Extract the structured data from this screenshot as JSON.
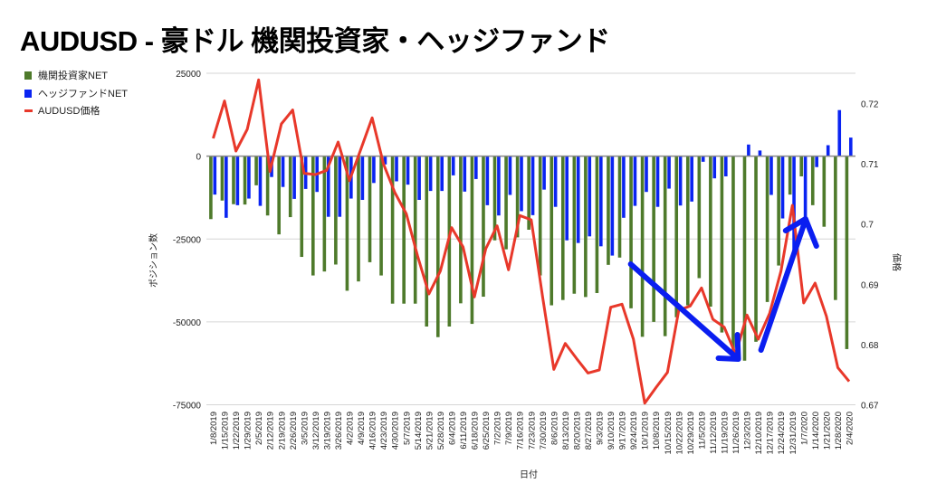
{
  "chart_data": {
    "type": "bar+line",
    "title": "AUDUSD - 豪ドル 機関投資家・ヘッジファンド",
    "xlabel": "日付",
    "ylabel": "ポジション数",
    "y2label": "価格",
    "ylim": [
      -75000,
      25000
    ],
    "y2lim": [
      0.67,
      0.72
    ],
    "yticks": [
      "25000",
      "0",
      "-25000",
      "-50000",
      "-75000"
    ],
    "y2ticks": [
      "0.72",
      "0.71",
      "0.7",
      "0.69",
      "0.68",
      "0.67"
    ],
    "grid": true,
    "legend_position": "top-left",
    "colors": {
      "institutional": "#4e7a2b",
      "hedge": "#0a24f2",
      "price": "#e8382a",
      "arrow": "#0a1ef0"
    },
    "categories": [
      "1/8/2019",
      "1/15/2019",
      "1/22/2019",
      "1/29/2019",
      "2/5/2019",
      "2/12/2019",
      "2/19/2019",
      "2/26/2019",
      "3/5/2019",
      "3/12/2019",
      "3/19/2019",
      "3/26/2019",
      "4/2/2019",
      "4/9/2019",
      "4/16/2019",
      "4/23/2019",
      "4/30/2019",
      "5/7/2019",
      "5/14/2019",
      "5/21/2019",
      "5/28/2019",
      "6/4/2019",
      "6/11/2019",
      "6/18/2019",
      "6/25/2019",
      "7/2/2019",
      "7/9/2019",
      "7/16/2019",
      "7/23/2019",
      "7/30/2019",
      "8/6/2019",
      "8/13/2019",
      "8/20/2019",
      "8/27/2019",
      "9/3/2019",
      "9/10/2019",
      "9/17/2019",
      "9/24/2019",
      "10/1/2019",
      "10/8/2019",
      "10/15/2019",
      "10/22/2019",
      "10/29/2019",
      "11/5/2019",
      "11/12/2019",
      "11/19/2019",
      "11/26/2019",
      "12/3/2019",
      "12/10/2019",
      "12/17/2019",
      "12/24/2019",
      "12/31/2019",
      "1/7/2020",
      "1/14/2020",
      "1/21/2020",
      "1/28/2020",
      "2/4/2020"
    ],
    "series": [
      {
        "name": "機関投資家NET",
        "type": "bar",
        "axis": "left",
        "values": [
          -19000,
          -13400,
          -14500,
          -14600,
          -8800,
          -17900,
          -23600,
          -18400,
          -30400,
          -36000,
          -34800,
          -32700,
          -40600,
          -37800,
          -32000,
          -36000,
          -44500,
          -44500,
          -44500,
          -51400,
          -54600,
          -51400,
          -44400,
          -50600,
          -42400,
          -25400,
          -28100,
          -24500,
          -22200,
          -36000,
          -45000,
          -43400,
          -41500,
          -42500,
          -41300,
          -32800,
          -30600,
          -45900,
          -54500,
          -50000,
          -54300,
          -48600,
          -45000,
          -36800,
          -45400,
          -53200,
          -61000,
          -61700,
          -56000,
          -44000,
          -33000,
          -11600,
          -6100,
          -14800,
          -21300,
          -43400,
          -58200
        ]
      },
      {
        "name": "ヘッジファンドNET",
        "type": "bar",
        "axis": "left",
        "values": [
          -11600,
          -18600,
          -14800,
          -12800,
          -15000,
          -6300,
          -9300,
          -12900,
          -9900,
          -10800,
          -18300,
          -18300,
          -12800,
          -13200,
          -8100,
          -2500,
          -7600,
          -8600,
          -13200,
          -10500,
          -10500,
          -5800,
          -10700,
          -6900,
          -14800,
          -17900,
          -11700,
          -16600,
          -17800,
          -10100,
          -15300,
          -25400,
          -26200,
          -24200,
          -27200,
          -30000,
          -18600,
          -15000,
          -10800,
          -15300,
          -9800,
          -14900,
          -13700,
          -1700,
          -6700,
          -6100,
          0,
          3500,
          1700,
          -11700,
          -18800,
          -30000,
          -18600,
          -3300,
          3300,
          13900,
          5600
        ]
      },
      {
        "name": "AUDUSD価格",
        "type": "line",
        "axis": "right",
        "values": [
          0.7142,
          0.7204,
          0.7121,
          0.7157,
          0.7239,
          0.7087,
          0.7166,
          0.7189,
          0.7084,
          0.7082,
          0.7089,
          0.7136,
          0.7072,
          0.7124,
          0.7176,
          0.7099,
          0.7052,
          0.7017,
          0.6947,
          0.6884,
          0.6922,
          0.6994,
          0.6962,
          0.6879,
          0.6959,
          0.6997,
          0.6924,
          0.7014,
          0.7007,
          0.688,
          0.6759,
          0.6802,
          0.6777,
          0.6753,
          0.6758,
          0.6862,
          0.6867,
          0.6809,
          0.6703,
          0.6729,
          0.6754,
          0.6857,
          0.6864,
          0.6894,
          0.6842,
          0.6829,
          0.6784,
          0.6849,
          0.6809,
          0.6852,
          0.6922,
          0.7031,
          0.6869,
          0.6902,
          0.6847,
          0.6762,
          0.6739
        ]
      }
    ],
    "annotations": [
      {
        "type": "arrow",
        "description": "down",
        "from": "9/24/2019",
        "to": "11/26/2019"
      },
      {
        "type": "arrow",
        "description": "up",
        "from": "12/10/2019",
        "to": "1/7/2020"
      }
    ]
  }
}
